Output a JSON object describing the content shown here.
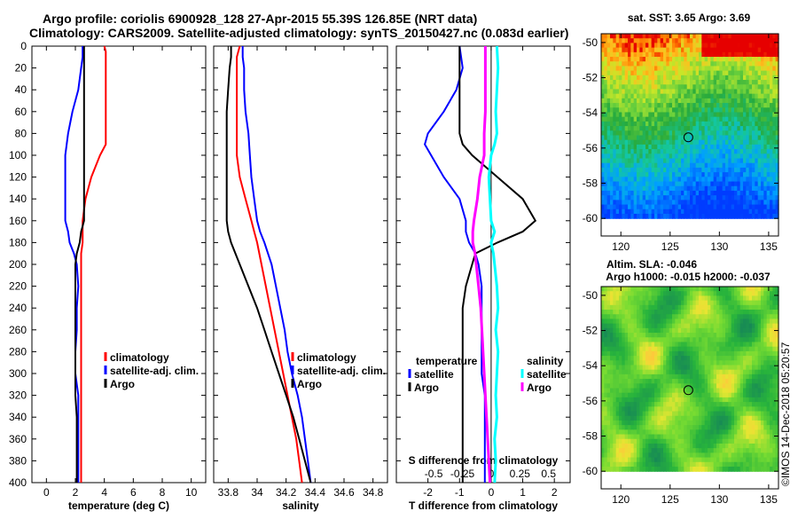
{
  "header": {
    "title_line1": "Argo profile: coriolis 6900928_128 27-Apr-2015 55.39S 126.85E (NRT data)",
    "title_line2": "Climatology: CARS2009. Satellite-adjusted climatology: synTS_20150427.nc (0.083d earlier)"
  },
  "watermark": "©IMOS 14-Dec-2018 05:20:57",
  "colors": {
    "climatology": "#ff0000",
    "satellite": "#0000ff",
    "argo": "#000000",
    "argo_s": "#ff00ff",
    "sat_s": "#00ffff"
  },
  "chart_data": [
    {
      "id": "temperature",
      "type": "line",
      "title": "",
      "xlabel": "temperature (deg C)",
      "ylabel": "",
      "xlim": [
        -1,
        11
      ],
      "ylim": [
        400,
        0
      ],
      "xticks": [
        "0",
        "2",
        "4",
        "6",
        "8",
        "10"
      ],
      "yticks": [
        "0",
        "20",
        "40",
        "60",
        "80",
        "100",
        "120",
        "140",
        "160",
        "180",
        "200",
        "220",
        "240",
        "260",
        "280",
        "300",
        "320",
        "340",
        "360",
        "380",
        "400"
      ],
      "depth": [
        0,
        5,
        10,
        20,
        40,
        60,
        80,
        90,
        100,
        120,
        130,
        140,
        150,
        160,
        170,
        180,
        190,
        200,
        220,
        240,
        260,
        280,
        300,
        320,
        340,
        360,
        380,
        400
      ],
      "series": [
        {
          "name": "climatology",
          "key": "climatology",
          "values": [
            4.0,
            4.1,
            4.1,
            4.1,
            4.1,
            4.1,
            4.1,
            4.1,
            3.7,
            3.1,
            2.9,
            2.7,
            2.6,
            2.5,
            2.5,
            2.5,
            2.4,
            2.4,
            2.4,
            2.4,
            2.4,
            2.4,
            2.4,
            2.4,
            2.4,
            2.4,
            2.4,
            2.4
          ]
        },
        {
          "name": "satellite-adj. clim.",
          "key": "satellite",
          "values": [
            2.5,
            2.5,
            2.5,
            2.4,
            2.2,
            1.8,
            1.5,
            1.4,
            1.3,
            1.3,
            1.3,
            1.3,
            1.3,
            1.3,
            1.5,
            1.6,
            1.9,
            2.1,
            2.2,
            2.1,
            2.1,
            2.0,
            2.0,
            2.2,
            2.2,
            2.2,
            2.2,
            2.2
          ]
        },
        {
          "name": "Argo",
          "key": "argo",
          "values": [
            2.6,
            2.6,
            2.6,
            2.6,
            2.6,
            2.6,
            2.6,
            2.6,
            2.6,
            2.6,
            2.6,
            2.6,
            2.6,
            2.6,
            2.4,
            2.3,
            2.1,
            2.0,
            2.0,
            2.0,
            2.0,
            2.0,
            2.0,
            2.0,
            2.1,
            2.1,
            2.1,
            2.1
          ]
        }
      ],
      "legend": [
        "climatology",
        "satellite-adj. clim.",
        "Argo"
      ]
    },
    {
      "id": "salinity",
      "type": "line",
      "title": "",
      "xlabel": "salinity",
      "ylabel": "",
      "xlim": [
        33.7,
        34.9
      ],
      "ylim": [
        400,
        0
      ],
      "xticks": [
        "33.8",
        "34",
        "34.2",
        "34.4",
        "34.6",
        "34.8"
      ],
      "depth": [
        0,
        10,
        20,
        40,
        60,
        80,
        100,
        120,
        140,
        160,
        170,
        180,
        200,
        220,
        240,
        260,
        280,
        300,
        320,
        340,
        360,
        380,
        400
      ],
      "series": [
        {
          "name": "climatology",
          "key": "climatology",
          "values": [
            33.88,
            33.86,
            33.86,
            33.86,
            33.86,
            33.86,
            33.86,
            33.88,
            33.92,
            33.96,
            33.98,
            34.0,
            34.03,
            34.06,
            34.09,
            34.12,
            34.15,
            34.18,
            34.21,
            34.24,
            34.27,
            34.29,
            34.31
          ]
        },
        {
          "name": "satellite-adj. clim.",
          "key": "satellite",
          "values": [
            33.9,
            33.9,
            33.91,
            33.91,
            33.92,
            33.94,
            33.95,
            33.96,
            33.98,
            34.0,
            34.02,
            34.05,
            34.1,
            34.13,
            34.16,
            34.19,
            34.21,
            34.24,
            34.28,
            34.31,
            34.33,
            34.35,
            34.37
          ]
        },
        {
          "name": "Argo",
          "key": "argo",
          "values": [
            33.82,
            33.82,
            33.81,
            33.8,
            33.79,
            33.79,
            33.79,
            33.79,
            33.79,
            33.79,
            33.8,
            33.82,
            33.88,
            33.94,
            34.0,
            34.05,
            34.1,
            34.15,
            34.2,
            34.25,
            34.29,
            34.33,
            34.37
          ]
        }
      ],
      "legend": [
        "climatology",
        "satellite-adj. clim.",
        "Argo"
      ]
    },
    {
      "id": "difference",
      "type": "line",
      "title": "",
      "xlabel": "T difference from climatology",
      "ylabel": "",
      "xlim": [
        -3,
        2.5
      ],
      "ylim": [
        400,
        0
      ],
      "xticks": [
        "-2",
        "-1",
        "0",
        "1",
        "2"
      ],
      "secondary_xlabel": "S difference from climatology",
      "secondary_xticks": [
        "-0.5",
        "-0.25",
        "0",
        "0.25",
        "0.5"
      ],
      "secondary_xlim": [
        -0.825,
        0.6875
      ],
      "depth": [
        0,
        20,
        40,
        60,
        80,
        90,
        100,
        120,
        140,
        160,
        170,
        180,
        190,
        200,
        220,
        240,
        260,
        280,
        300,
        320,
        340,
        360,
        380,
        400
      ],
      "series": [
        {
          "name": "temperature satellite",
          "key": "satellite",
          "values": [
            -1.0,
            -0.9,
            -1.1,
            -1.5,
            -2.0,
            -2.1,
            -1.9,
            -1.5,
            -1.0,
            -0.8,
            -0.8,
            -0.7,
            -0.5,
            -0.4,
            -0.3,
            -0.3,
            -0.3,
            -0.3,
            -0.3,
            -0.2,
            -0.2,
            -0.2,
            -0.2,
            -0.2
          ]
        },
        {
          "name": "temperature Argo",
          "key": "argo",
          "values": [
            -1.0,
            -1.0,
            -1.0,
            -1.0,
            -1.0,
            -0.9,
            -0.6,
            0.2,
            1.0,
            1.4,
            1.0,
            0.2,
            -0.5,
            -0.6,
            -0.8,
            -0.9,
            -0.9,
            -0.9,
            -0.9,
            -0.9,
            -0.9,
            -0.9,
            -0.9,
            -0.9
          ]
        },
        {
          "name": "salinity satellite",
          "key": "sat_s",
          "values": [
            0.05,
            0.06,
            0.05,
            0.04,
            0.05,
            0.03,
            0.0,
            -0.02,
            -0.01,
            0.0,
            0.03,
            0.0,
            0.02,
            0.03,
            0.05,
            0.06,
            0.04,
            0.06,
            0.05,
            0.04,
            0.05,
            0.03,
            0.04,
            0.03
          ]
        },
        {
          "name": "salinity Argo",
          "key": "argo_s",
          "values": [
            -0.05,
            -0.05,
            -0.05,
            -0.05,
            -0.06,
            -0.06,
            -0.06,
            -0.1,
            -0.12,
            -0.15,
            -0.16,
            -0.16,
            -0.14,
            -0.13,
            -0.11,
            -0.09,
            -0.08,
            -0.07,
            -0.06,
            -0.05,
            -0.04,
            -0.03,
            -0.02,
            -0.01
          ]
        }
      ],
      "legend": {
        "temperature_title": "temperature",
        "salinity_title": "salinity",
        "sat": "satellite",
        "argo": "Argo"
      }
    },
    {
      "id": "sst_map",
      "type": "heatmap",
      "title": "sat. SST: 3.65 Argo: 3.69",
      "xlim": [
        118,
        136
      ],
      "ylim": [
        -61,
        -49.5
      ],
      "xticks": [
        "120",
        "125",
        "130",
        "135"
      ],
      "yticks": [
        "-50",
        "-52",
        "-54",
        "-56",
        "-58",
        "-60"
      ],
      "marker": {
        "lon": 126.85,
        "lat": -55.39
      }
    },
    {
      "id": "sla_map",
      "type": "heatmap",
      "title": "Altim. SLA: -0.046",
      "subtitle": "Argo h1000: -0.015 h2000: -0.037",
      "xlim": [
        118,
        136
      ],
      "ylim": [
        -61,
        -49.5
      ],
      "xticks": [
        "120",
        "125",
        "130",
        "135"
      ],
      "yticks": [
        "-50",
        "-52",
        "-54",
        "-56",
        "-58",
        "-60"
      ],
      "marker": {
        "lon": 126.85,
        "lat": -55.39
      }
    }
  ]
}
